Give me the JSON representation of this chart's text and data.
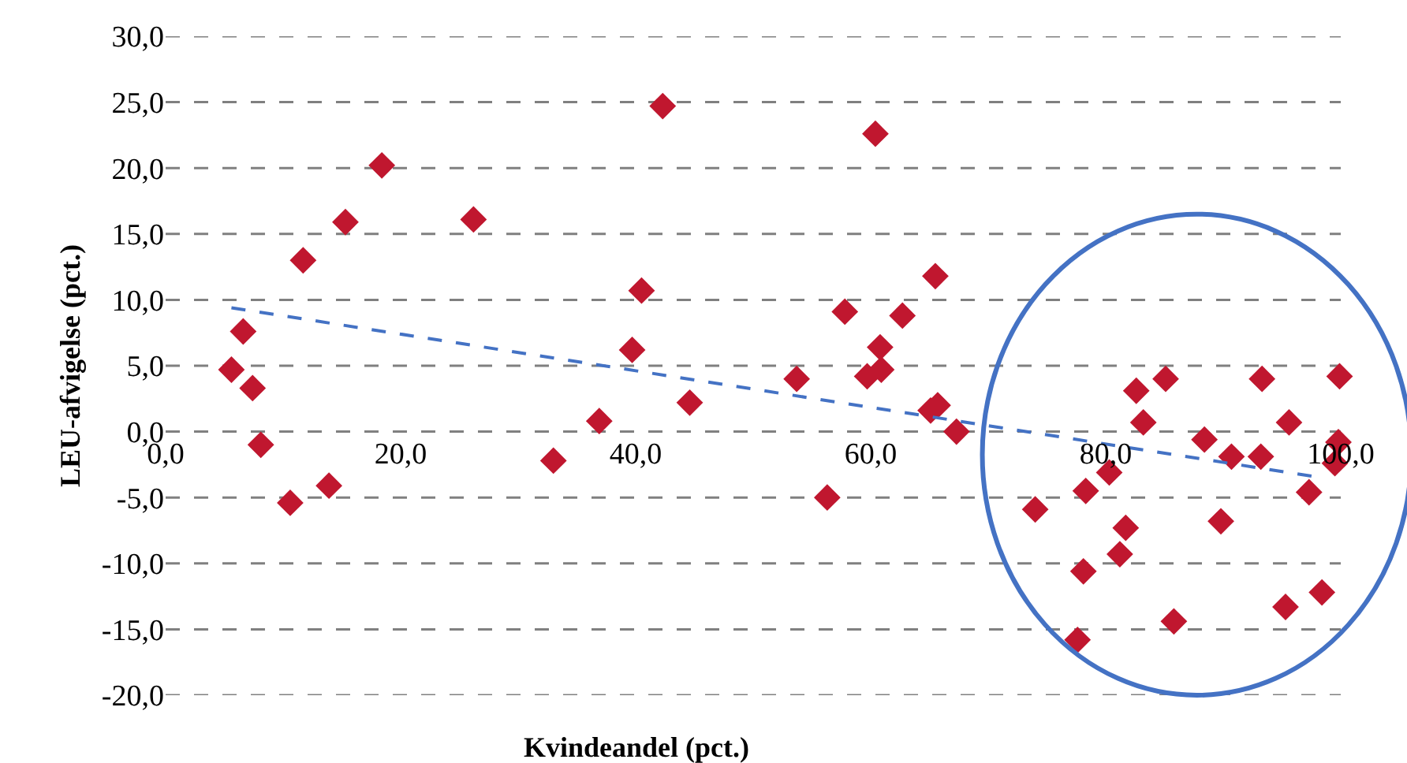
{
  "chart_data": {
    "type": "scatter",
    "xlabel": "Kvindeandel (pct.)",
    "ylabel": "LEU-afvigelse (pct.)",
    "xlim": [
      0,
      100
    ],
    "ylim": [
      -20,
      30
    ],
    "xticks": [
      {
        "value": 0,
        "label": "0,0"
      },
      {
        "value": 20,
        "label": "20,0"
      },
      {
        "value": 40,
        "label": "40,0"
      },
      {
        "value": 60,
        "label": "60,0"
      },
      {
        "value": 80,
        "label": "80,0"
      },
      {
        "value": 100,
        "label": "100,0"
      }
    ],
    "yticks": [
      {
        "value": -20,
        "label": "-20,0"
      },
      {
        "value": -15,
        "label": "-15,0"
      },
      {
        "value": -10,
        "label": "-10,0"
      },
      {
        "value": -5,
        "label": "-5,0"
      },
      {
        "value": 0,
        "label": "0,0"
      },
      {
        "value": 5,
        "label": "5,0"
      },
      {
        "value": 10,
        "label": "10,0"
      },
      {
        "value": 15,
        "label": "15,0"
      },
      {
        "value": 20,
        "label": "20,0"
      },
      {
        "value": 25,
        "label": "25,0"
      },
      {
        "value": 30,
        "label": "30,0"
      }
    ],
    "grid": "y",
    "series": [
      {
        "color": "#c0172f",
        "marker": "diamond",
        "x": [
          5.6,
          6.6,
          7.4,
          8.1,
          10.6,
          11.7,
          13.9,
          15.3,
          18.4,
          26.2,
          33.0,
          36.9,
          39.7,
          40.5,
          42.3,
          44.6,
          53.7,
          56.3,
          57.8,
          60.4,
          59.7,
          60.9,
          60.8,
          62.7,
          65.5,
          65.1,
          65.7,
          67.3,
          74.0,
          78.1,
          77.6,
          78.3,
          80.3,
          81.7,
          81.2,
          82.6,
          83.2,
          85.1,
          85.8,
          88.4,
          89.8,
          90.7,
          93.2,
          93.3,
          95.6,
          95.3,
          97.3,
          98.4,
          99.9,
          99.8,
          99.5
        ],
        "values": [
          4.7,
          7.6,
          3.3,
          -1.0,
          -5.4,
          13.0,
          -4.1,
          15.9,
          20.2,
          16.1,
          -2.2,
          0.8,
          6.2,
          10.7,
          24.7,
          2.2,
          4.0,
          -5.0,
          9.1,
          22.6,
          4.2,
          4.7,
          6.4,
          8.8,
          11.8,
          1.6,
          2.0,
          0.0,
          -5.9,
          -10.6,
          -15.8,
          -4.5,
          -3.1,
          -7.3,
          -9.3,
          3.1,
          0.7,
          4.0,
          -14.4,
          -0.6,
          -6.8,
          -1.9,
          -1.9,
          4.0,
          0.7,
          -13.3,
          -4.6,
          -12.2,
          4.2,
          -0.8,
          -2.4
        ]
      },
      {
        "type": "line",
        "color": "#4472c4",
        "line_style": "dashed",
        "marker": "none",
        "x": [
          5.6,
          97.7
        ],
        "values": [
          9.4,
          -3.4
        ]
      }
    ]
  }
}
